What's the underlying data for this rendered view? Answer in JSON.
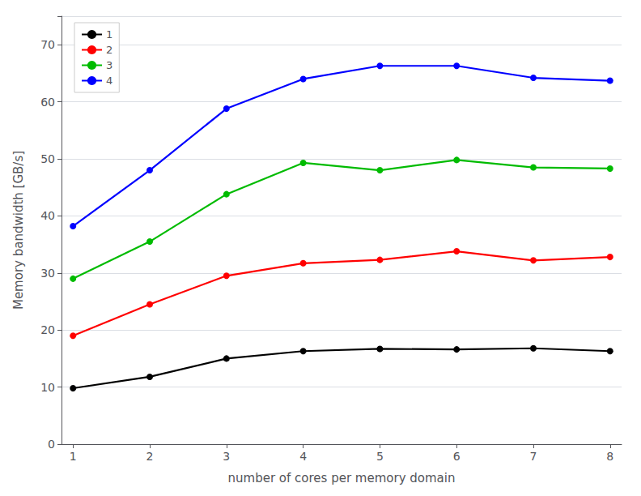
{
  "chart_data": {
    "type": "line",
    "xlabel": "number of cores per memory domain",
    "ylabel": "Memory bandwidth [GB/s]",
    "x": [
      1,
      2,
      3,
      4,
      5,
      6,
      7,
      8
    ],
    "series": [
      {
        "name": "1",
        "color": "#000000",
        "values": [
          9.8,
          11.8,
          15.0,
          16.3,
          16.7,
          16.6,
          16.8,
          16.3
        ]
      },
      {
        "name": "2",
        "color": "#ff0000",
        "values": [
          19.0,
          24.5,
          29.5,
          31.7,
          32.3,
          33.8,
          32.2,
          32.8
        ]
      },
      {
        "name": "3",
        "color": "#00bb00",
        "values": [
          29.0,
          35.5,
          43.8,
          49.3,
          48.0,
          49.8,
          48.5,
          48.3
        ]
      },
      {
        "name": "4",
        "color": "#0000ff",
        "values": [
          38.2,
          48.0,
          58.8,
          64.0,
          66.3,
          66.3,
          64.2,
          63.7
        ]
      }
    ],
    "xlim": [
      0.85,
      8.15
    ],
    "ylim": [
      0,
      75
    ],
    "xticks": [
      1,
      2,
      3,
      4,
      5,
      6,
      7,
      8
    ],
    "yticks": [
      0,
      10,
      20,
      30,
      40,
      50,
      60,
      70
    ],
    "grid": true,
    "legend": "upper left",
    "marker": "circle"
  }
}
